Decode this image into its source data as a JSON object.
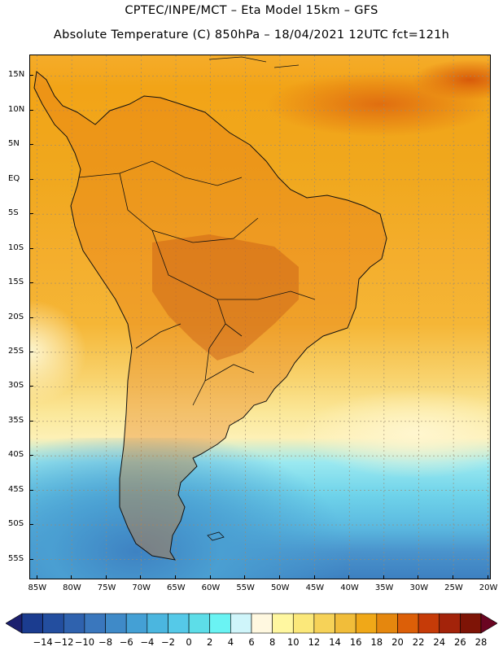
{
  "header": {
    "line1": "CPTEC/INPE/MCT –   Eta Model 15km – GFS",
    "line2": "Absolute Temperature (C) 850hPa – 18/04/2021 12UTC fct=121h"
  },
  "map": {
    "lat_labels": [
      "15N",
      "10N",
      "5N",
      "EQ",
      "5S",
      "10S",
      "15S",
      "20S",
      "25S",
      "30S",
      "35S",
      "40S",
      "45S",
      "50S",
      "55S"
    ],
    "lon_labels": [
      "85W",
      "80W",
      "75W",
      "70W",
      "65W",
      "60W",
      "55W",
      "50W",
      "45W",
      "40W",
      "35W",
      "30W",
      "25W",
      "20W"
    ],
    "lat_range": [
      18,
      -58
    ],
    "lon_range": [
      -86,
      -19.5
    ]
  },
  "colorbar": {
    "labels": [
      "-14",
      "-12",
      "-10",
      "-8",
      "-6",
      "-4",
      "-2",
      "0",
      "2",
      "4",
      "6",
      "8",
      "10",
      "12",
      "14",
      "16",
      "18",
      "20",
      "22",
      "24",
      "26",
      "28"
    ],
    "colors": [
      "#1b3c8f",
      "#234e9f",
      "#2f62ae",
      "#3a77bd",
      "#3f8ac8",
      "#44a0d5",
      "#4bb6df",
      "#55c9e8",
      "#5ddde8",
      "#6af3f3",
      "#cff5fa",
      "#fff8e0",
      "#fff7a0",
      "#fbe87a",
      "#f6d258",
      "#f1bd3a",
      "#f0a818",
      "#e5870e",
      "#dc5f08",
      "#c63b08",
      "#a3230a",
      "#7e1406"
    ],
    "left_arrow_color": "#1b1f6e",
    "right_arrow_color": "#6a0522"
  }
}
